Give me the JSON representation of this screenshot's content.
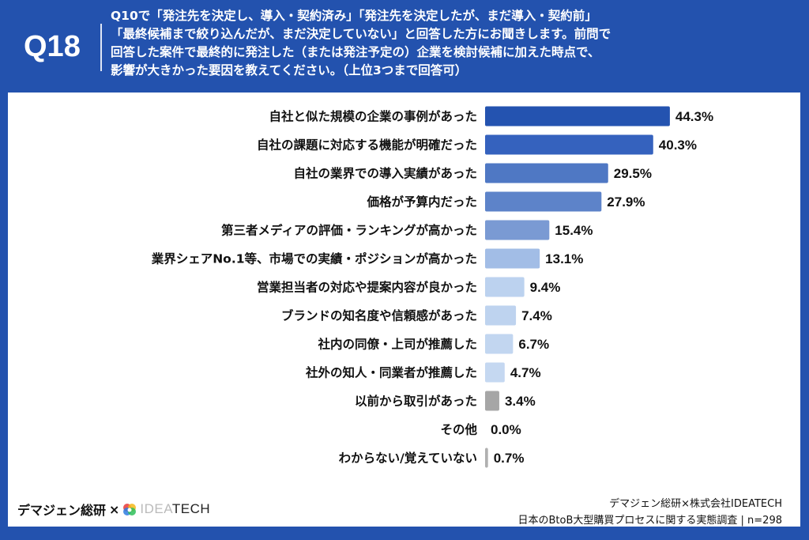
{
  "header": {
    "question_no": "Q18",
    "question_text": "Q10で「発注先を決定し、導入・契約済み」「発注先を決定したが、まだ導入・契約前」\n「最終候補まで絞り込んだが、まだ決定していない」と回答した方にお聞きします。前問で\n回答した案件で最終的に発注した（または発注予定の）企業を検討候補に加えた時点で、\n影響が大きかった要因を教えてください。（上位3つまで回答可）"
  },
  "chart_data": {
    "type": "bar",
    "orientation": "horizontal",
    "unit": "%",
    "categories": [
      "自社と似た規模の企業の事例があった",
      "自社の課題に対応する機能が明確だった",
      "自社の業界での導入実績があった",
      "価格が予算内だった",
      "第三者メディアの評価・ランキングが高かった",
      "業界シェアNo.1等、市場での実績・ポジションが高かった",
      "営業担当者の対応や提案内容が良かった",
      "ブランドの知名度や信頼感があった",
      "社内の同僚・上司が推薦した",
      "社外の知人・同業者が推薦した",
      "以前から取引があった",
      "その他",
      "わからない/覚えていない"
    ],
    "values": [
      44.3,
      40.3,
      29.5,
      27.9,
      15.4,
      13.1,
      9.4,
      7.4,
      6.7,
      4.7,
      3.4,
      0.0,
      0.7
    ],
    "labels": [
      "44.3%",
      "40.3%",
      "29.5%",
      "27.9%",
      "15.4%",
      "13.1%",
      "9.4%",
      "7.4%",
      "6.7%",
      "4.7%",
      "3.4%",
      "0.0%",
      "0.7%"
    ],
    "colors": [
      "#2453b0",
      "#3562be",
      "#4f78c4",
      "#5d83c9",
      "#7a9ad3",
      "#a2bde6",
      "#bcd2ef",
      "#bed3ef",
      "#c2d6f0",
      "#c5d8f1",
      "#a6a6a6",
      "#b0b0b0",
      "#b0b0b0"
    ],
    "grid": false,
    "legend": "none"
  },
  "footer": {
    "logo_left": "デマジェン総研",
    "logo_times": "×",
    "logo_idea_light": "IDEA",
    "logo_idea_dark": "TECH",
    "credit_line1": "デマジェン総研×株式会社IDEATECH",
    "credit_line2": "日本のBtoB大型購買プロセスに関する実態調査 | n=298"
  }
}
